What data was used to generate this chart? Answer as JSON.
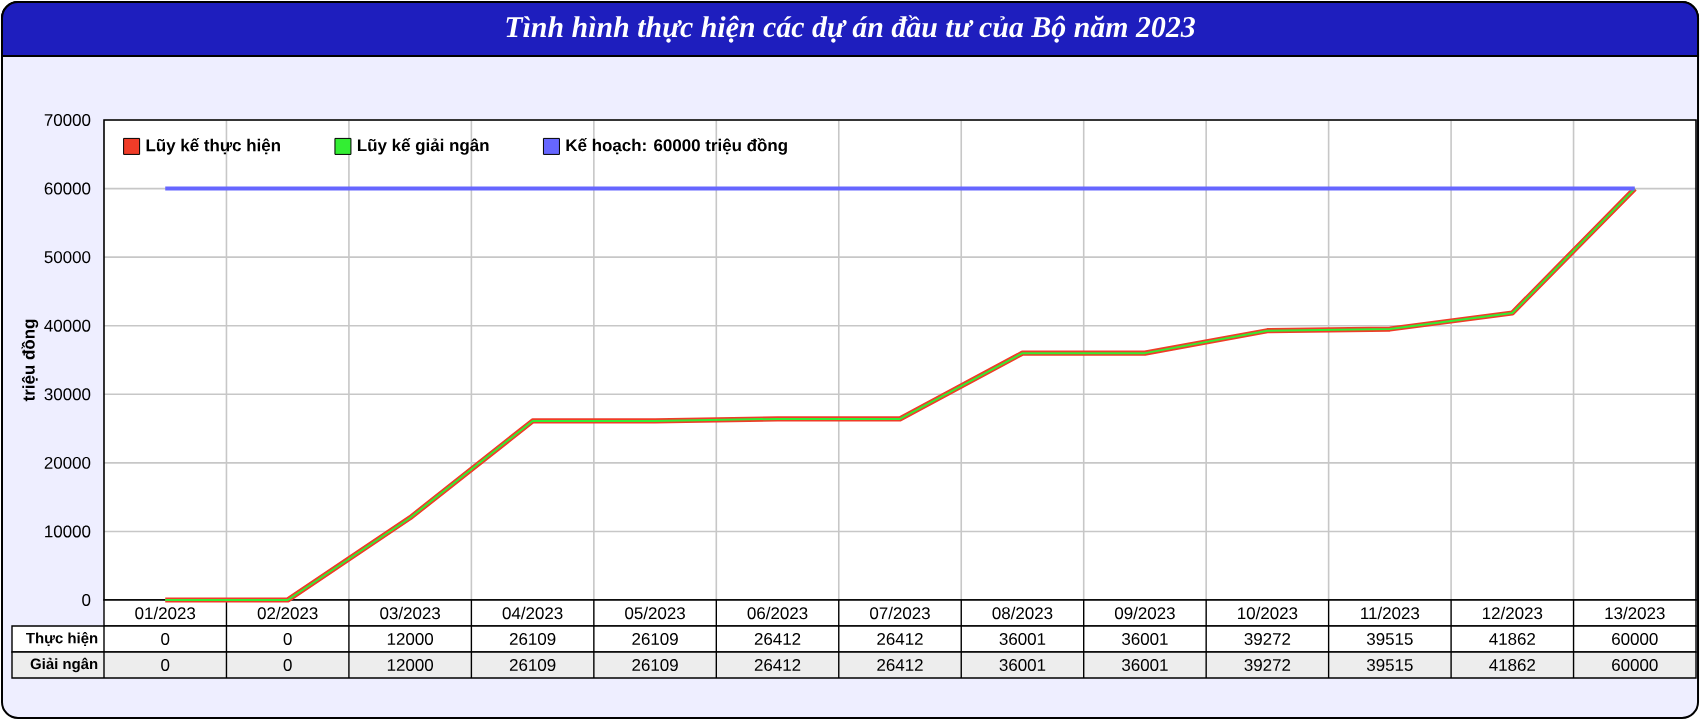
{
  "chart_data": {
    "type": "line",
    "title": "Tình hình thực hiện các dự án đầu tư của Bộ năm 2023",
    "ylabel": "triệu đồng",
    "categories": [
      "01/2023",
      "02/2023",
      "03/2023",
      "04/2023",
      "05/2023",
      "06/2023",
      "07/2023",
      "08/2023",
      "09/2023",
      "10/2023",
      "11/2023",
      "12/2023",
      "13/2023"
    ],
    "series": [
      {
        "name": "Lũy kế thực hiện",
        "color": "#f03c28",
        "values": [
          0,
          0,
          12000,
          26109,
          26109,
          26412,
          26412,
          36001,
          36001,
          39272,
          39515,
          41862,
          60000
        ]
      },
      {
        "name": "Lũy kế giải ngân",
        "color": "#33ee33",
        "values": [
          0,
          0,
          12000,
          26109,
          26109,
          26412,
          26412,
          36001,
          36001,
          39272,
          39515,
          41862,
          60000
        ]
      }
    ],
    "ref_lines": [
      {
        "axis": "y",
        "value": 60000,
        "label": "Kế hoạch: 60000 triệu đồng",
        "color": "#6666ff"
      }
    ],
    "data_labels": true,
    "annotations": [
      "Thực hiện",
      "Giải ngân"
    ],
    "ylim": [
      0,
      70000
    ],
    "yticks": [
      0,
      10000,
      20000,
      30000,
      40000,
      50000,
      60000,
      70000
    ],
    "grid": true,
    "legend": "top left",
    "marker": "none",
    "line_style": "solid"
  }
}
